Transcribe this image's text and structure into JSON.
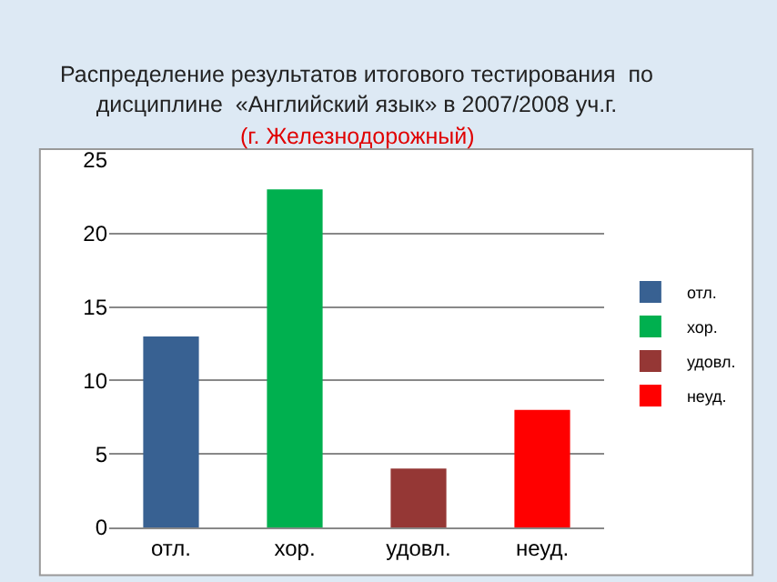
{
  "chart_data": {
    "type": "bar",
    "title": "Распределение результатов итогового тестирования  по дисциплине  «Английский язык» в 2007/2008 уч.г.",
    "subtitle": "(г. Железнодорожный)",
    "categories": [
      "отл.",
      "хор.",
      "удовл.",
      "неуд."
    ],
    "series": [
      {
        "name": "отл.",
        "color": "#386192",
        "values": [
          13,
          null,
          null,
          null
        ]
      },
      {
        "name": "хор.",
        "color": "#00b04f",
        "values": [
          null,
          23,
          null,
          null
        ]
      },
      {
        "name": "удовл.",
        "color": "#953735",
        "values": [
          null,
          null,
          4,
          null
        ]
      },
      {
        "name": "неуд.",
        "color": "#ff0000",
        "values": [
          null,
          null,
          null,
          8
        ]
      }
    ],
    "ylim": [
      0,
      25
    ],
    "yticks": [
      0,
      5,
      10,
      15,
      20,
      25
    ],
    "grid": "y",
    "legend": "right"
  }
}
